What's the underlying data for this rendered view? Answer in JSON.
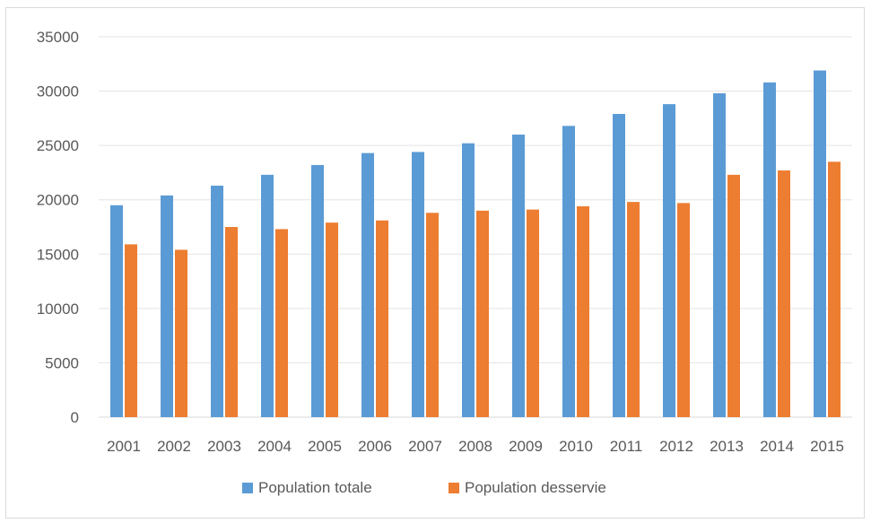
{
  "chart_data": {
    "type": "bar",
    "title": "",
    "xlabel": "",
    "ylabel": "",
    "categories": [
      "2001",
      "2002",
      "2003",
      "2004",
      "2005",
      "2006",
      "2007",
      "2008",
      "2009",
      "2010",
      "2011",
      "2012",
      "2013",
      "2014",
      "2015"
    ],
    "series": [
      {
        "name": "Population totale",
        "color": "#5b9bd5",
        "values": [
          19500,
          20400,
          21300,
          22300,
          23200,
          24300,
          24400,
          25200,
          26000,
          26800,
          27900,
          28800,
          29800,
          30800,
          31900
        ]
      },
      {
        "name": "Population desservie",
        "color": "#ed7d31",
        "values": [
          15900,
          15400,
          17500,
          17300,
          17900,
          18100,
          18800,
          19000,
          19100,
          19400,
          19800,
          19700,
          22300,
          22700,
          23500
        ]
      }
    ],
    "ylim": [
      0,
      35000
    ],
    "yticks": [
      0,
      5000,
      10000,
      15000,
      20000,
      25000,
      30000,
      35000
    ],
    "grid": true,
    "legend_position": "bottom"
  }
}
